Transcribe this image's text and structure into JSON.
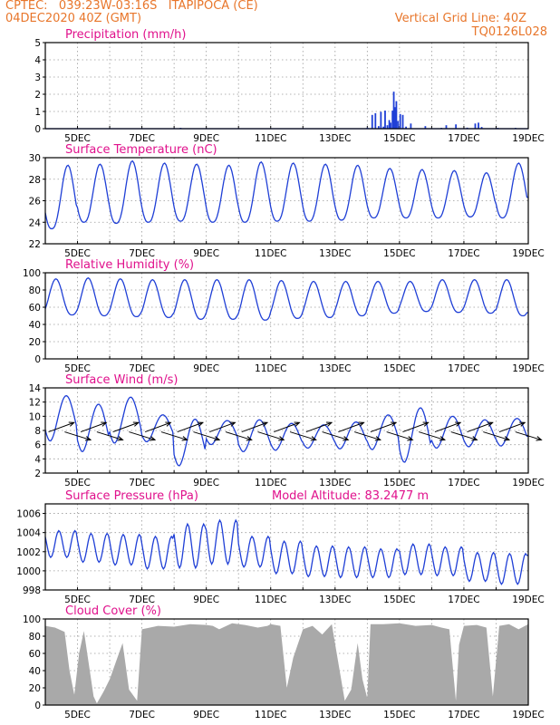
{
  "header": {
    "line1_left": "CPTEC:   039:23W-03:16S   ITAPIPOCA (CE)",
    "line2_left": "04DEC2020 40Z (GMT)",
    "line2_right": "Vertical Grid Line: 40Z",
    "line3_right": "TQ0126L028"
  },
  "colors": {
    "header": "#e8762b",
    "title": "#e0118c",
    "series": "#1f3fd6",
    "cloud": "#a9a9a9",
    "grid": "#9a9a9a"
  },
  "x_axis": {
    "range_days": [
      4.0,
      19.0
    ],
    "tick_labels": [
      "5DEC",
      "7DEC",
      "9DEC",
      "11DEC",
      "13DEC",
      "15DEC",
      "17DEC",
      "19DEC"
    ]
  },
  "chart_data": [
    {
      "id": "precipitation",
      "type": "bar",
      "title": "Precipitation (mm/h)",
      "ylim": [
        0,
        5
      ],
      "yticks": [
        0,
        1,
        2,
        3,
        4,
        5
      ],
      "x": [
        4.9,
        5.6,
        8.2,
        9.9,
        11.8,
        12.7,
        14.0,
        14.15,
        14.25,
        14.35,
        14.42,
        14.5,
        14.55,
        14.62,
        14.68,
        14.72,
        14.78,
        14.82,
        14.86,
        14.9,
        14.95,
        15.02,
        15.1,
        15.2,
        15.35,
        15.8,
        16.3,
        16.45,
        16.75,
        17.1,
        17.35,
        17.45,
        17.55,
        18.05,
        18.6
      ],
      "values": [
        0.02,
        0.02,
        0.05,
        0.02,
        0.02,
        0.02,
        0.06,
        0.8,
        0.9,
        0.15,
        0.98,
        0.12,
        1.05,
        0.2,
        0.5,
        0.35,
        1.05,
        2.15,
        1.25,
        1.6,
        0.45,
        0.85,
        0.8,
        0.12,
        0.3,
        0.15,
        0.05,
        0.2,
        0.25,
        0.06,
        0.3,
        0.35,
        0.1,
        0.05,
        0.05
      ]
    },
    {
      "id": "temperature",
      "type": "line",
      "title": "Surface Temperature (nC)",
      "ylim": [
        22,
        30
      ],
      "yticks": [
        22,
        24,
        26,
        28,
        30
      ],
      "day_start": 4.0,
      "daily_min": [
        23.4,
        24.0,
        23.9,
        24.0,
        24.1,
        24.0,
        24.0,
        24.1,
        24.1,
        24.2,
        24.4,
        24.4,
        24.4,
        24.5,
        24.4
      ],
      "daily_max": [
        29.3,
        29.4,
        29.7,
        29.5,
        29.4,
        29.3,
        29.6,
        29.5,
        29.4,
        29.3,
        29.0,
        28.9,
        28.8,
        28.6,
        29.5
      ]
    },
    {
      "id": "humidity",
      "type": "line",
      "title": "Relative Humidity (%)",
      "ylim": [
        0,
        100
      ],
      "yticks": [
        0,
        20,
        40,
        60,
        80,
        100
      ],
      "daily_min": [
        51,
        50,
        49,
        48,
        46,
        46,
        45,
        47,
        48,
        50,
        53,
        55,
        54,
        53,
        50
      ],
      "daily_max": [
        93,
        94,
        93,
        92,
        92,
        92,
        92,
        91,
        90,
        90,
        90,
        90,
        92,
        92,
        92
      ]
    },
    {
      "id": "wind",
      "type": "line",
      "title": "Surface Wind (m/s)",
      "ylim": [
        2,
        14
      ],
      "yticks": [
        2,
        4,
        6,
        8,
        10,
        12,
        14
      ],
      "daily_min": [
        6.5,
        5.0,
        6.2,
        6.4,
        3.0,
        6.0,
        5.0,
        5.2,
        5.5,
        5.4,
        5.3,
        3.5,
        5.5,
        5.7,
        5.8
      ],
      "daily_max": [
        12.9,
        11.7,
        12.7,
        10.2,
        9.6,
        9.4,
        9.5,
        9.0,
        8.8,
        9.2,
        10.2,
        11.2,
        10.0,
        9.5,
        9.7
      ],
      "vector_times": [
        4.1,
        4.6,
        5.1,
        5.6,
        6.1,
        6.6,
        7.1,
        7.6,
        8.1,
        8.6,
        9.1,
        9.6,
        10.1,
        10.6,
        11.1,
        11.6,
        12.1,
        12.6,
        13.1,
        13.6,
        14.1,
        14.6,
        15.1,
        15.6,
        16.1,
        16.6,
        17.1,
        17.6,
        18.1,
        18.6
      ]
    },
    {
      "id": "pressure",
      "type": "line",
      "title": "Surface Pressure (hPa)",
      "annotation": "Model Altitude: 83.2477  m",
      "ylim": [
        998,
        1007
      ],
      "yticks": [
        998,
        1000,
        1002,
        1004,
        1006
      ],
      "daily_mean": [
        1002.8,
        1002.4,
        1002.2,
        1001.9,
        1002.6,
        1003.0,
        1002.0,
        1001.4,
        1001.0,
        1000.9,
        1000.8,
        1001.2,
        1001.0,
        1000.4,
        1000.2
      ],
      "semidiurnal_amp": [
        1.4,
        1.5,
        1.6,
        1.7,
        2.3,
        2.3,
        1.6,
        1.7,
        1.6,
        1.6,
        1.5,
        1.6,
        1.5,
        1.5,
        1.6
      ]
    },
    {
      "id": "cloud",
      "type": "area",
      "title": "Cloud Cover (%)",
      "ylim": [
        0,
        100
      ],
      "yticks": [
        0,
        20,
        40,
        60,
        80,
        100
      ],
      "x": [
        4.0,
        4.3,
        4.6,
        4.75,
        4.9,
        5.05,
        5.2,
        5.5,
        5.6,
        5.8,
        6.0,
        6.4,
        6.6,
        6.85,
        7.0,
        7.5,
        8.0,
        8.5,
        9.0,
        9.2,
        9.4,
        9.8,
        10.2,
        10.6,
        10.9,
        11.0,
        11.3,
        11.5,
        11.7,
        12.0,
        12.3,
        12.6,
        12.9,
        13.05,
        13.3,
        13.5,
        13.7,
        13.85,
        14.0,
        14.1,
        14.5,
        15.0,
        15.5,
        16.0,
        16.3,
        16.55,
        16.75,
        16.85,
        17.0,
        17.4,
        17.7,
        17.9,
        18.1,
        18.4,
        18.7,
        19.0
      ],
      "values": [
        92,
        90,
        85,
        40,
        12,
        60,
        86,
        10,
        2,
        15,
        30,
        72,
        18,
        5,
        88,
        92,
        91,
        94,
        93,
        92,
        88,
        95,
        93,
        90,
        92,
        94,
        92,
        20,
        55,
        88,
        92,
        82,
        94,
        60,
        5,
        18,
        72,
        30,
        8,
        94,
        94,
        95,
        92,
        93,
        90,
        88,
        5,
        70,
        92,
        93,
        90,
        10,
        92,
        94,
        88,
        94
      ]
    }
  ]
}
